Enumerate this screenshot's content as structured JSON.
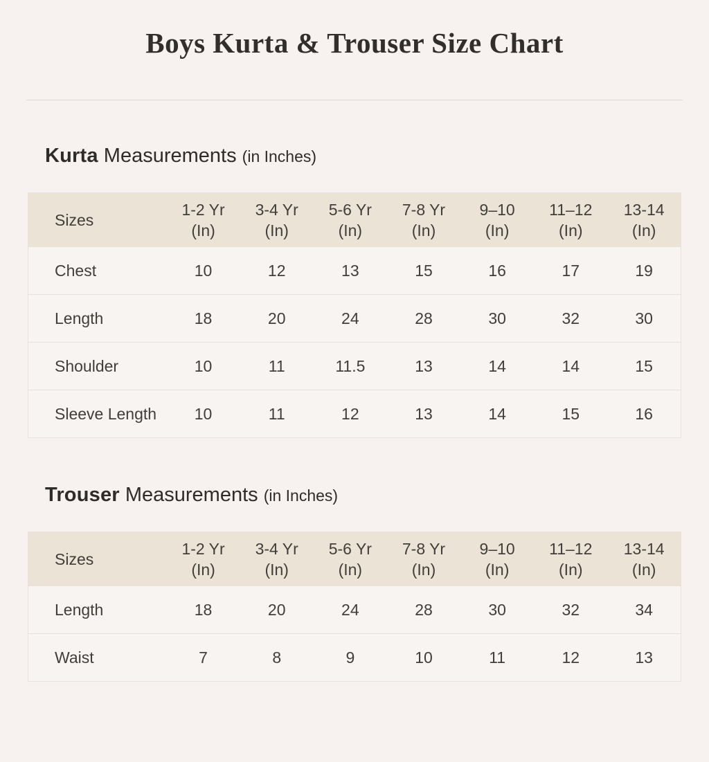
{
  "page": {
    "title": "Boys Kurta & Trouser Size Chart"
  },
  "colors": {
    "page_background": "#f7f2ef",
    "table_header_background": "#ece3d7",
    "table_body_background": "#f8f4f1",
    "text": "#3e3a36",
    "divider": "#ded8d4"
  },
  "sections": [
    {
      "heading": {
        "name": "Kurta",
        "word": "Measurements",
        "note": "(in Inches)"
      },
      "table": {
        "corner_label": "Sizes",
        "columns": [
          {
            "label": "1-2 Yr",
            "unit": "(In)"
          },
          {
            "label": "3-4 Yr",
            "unit": "(In)"
          },
          {
            "label": "5-6 Yr",
            "unit": "(In)"
          },
          {
            "label": "7-8 Yr",
            "unit": "(In)"
          },
          {
            "label": "9–10",
            "unit": "(In)"
          },
          {
            "label": "11–12",
            "unit": "(In)"
          },
          {
            "label": "13-14",
            "unit": "(In)"
          }
        ],
        "rows": [
          {
            "label": "Chest",
            "values": [
              "10",
              "12",
              "13",
              "15",
              "16",
              "17",
              "19"
            ]
          },
          {
            "label": "Length",
            "values": [
              "18",
              "20",
              "24",
              "28",
              "30",
              "32",
              "30"
            ]
          },
          {
            "label": "Shoulder",
            "values": [
              "10",
              "11",
              "11.5",
              "13",
              "14",
              "14",
              "15"
            ]
          },
          {
            "label": "Sleeve Length",
            "values": [
              "10",
              "11",
              "12",
              "13",
              "14",
              "15",
              "16"
            ]
          }
        ]
      }
    },
    {
      "heading": {
        "name": "Trouser",
        "word": "Measurements",
        "note": "(in Inches)"
      },
      "table": {
        "corner_label": "Sizes",
        "columns": [
          {
            "label": "1-2 Yr",
            "unit": "(In)"
          },
          {
            "label": "3-4 Yr",
            "unit": "(In)"
          },
          {
            "label": "5-6 Yr",
            "unit": "(In)"
          },
          {
            "label": "7-8 Yr",
            "unit": "(In)"
          },
          {
            "label": "9–10",
            "unit": "(In)"
          },
          {
            "label": "11–12",
            "unit": "(In)"
          },
          {
            "label": "13-14",
            "unit": "(In)"
          }
        ],
        "rows": [
          {
            "label": "Length",
            "values": [
              "18",
              "20",
              "24",
              "28",
              "30",
              "32",
              "34"
            ]
          },
          {
            "label": "Waist",
            "values": [
              "7",
              "8",
              "9",
              "10",
              "11",
              "12",
              "13"
            ]
          }
        ]
      }
    }
  ]
}
